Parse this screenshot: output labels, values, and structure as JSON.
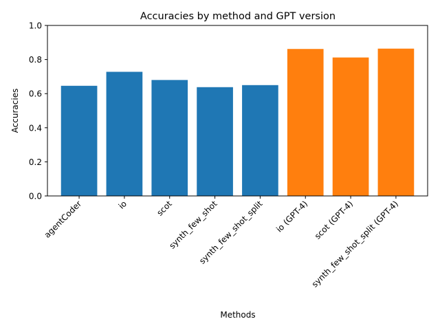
{
  "chart_data": {
    "type": "bar",
    "title": "Accuracies by method and GPT version",
    "xlabel": "Methods",
    "ylabel": "Accuracies",
    "ylim": [
      0,
      1.0
    ],
    "yticks": [
      "0.0",
      "0.2",
      "0.4",
      "0.6",
      "0.8",
      "1.0"
    ],
    "grid": false,
    "categories": [
      "agentCoder",
      "io",
      "scot",
      "synth_few_shot",
      "synth_few_shot_split",
      "io (GPT-4)",
      "scot (GPT-4)",
      "synth_few_shot_split (GPT-4)"
    ],
    "values": [
      0.646,
      0.728,
      0.68,
      0.638,
      0.65,
      0.862,
      0.812,
      0.864
    ],
    "bar_colors": [
      "#1f77b4",
      "#1f77b4",
      "#1f77b4",
      "#1f77b4",
      "#1f77b4",
      "#ff7f0e",
      "#ff7f0e",
      "#ff7f0e"
    ]
  }
}
